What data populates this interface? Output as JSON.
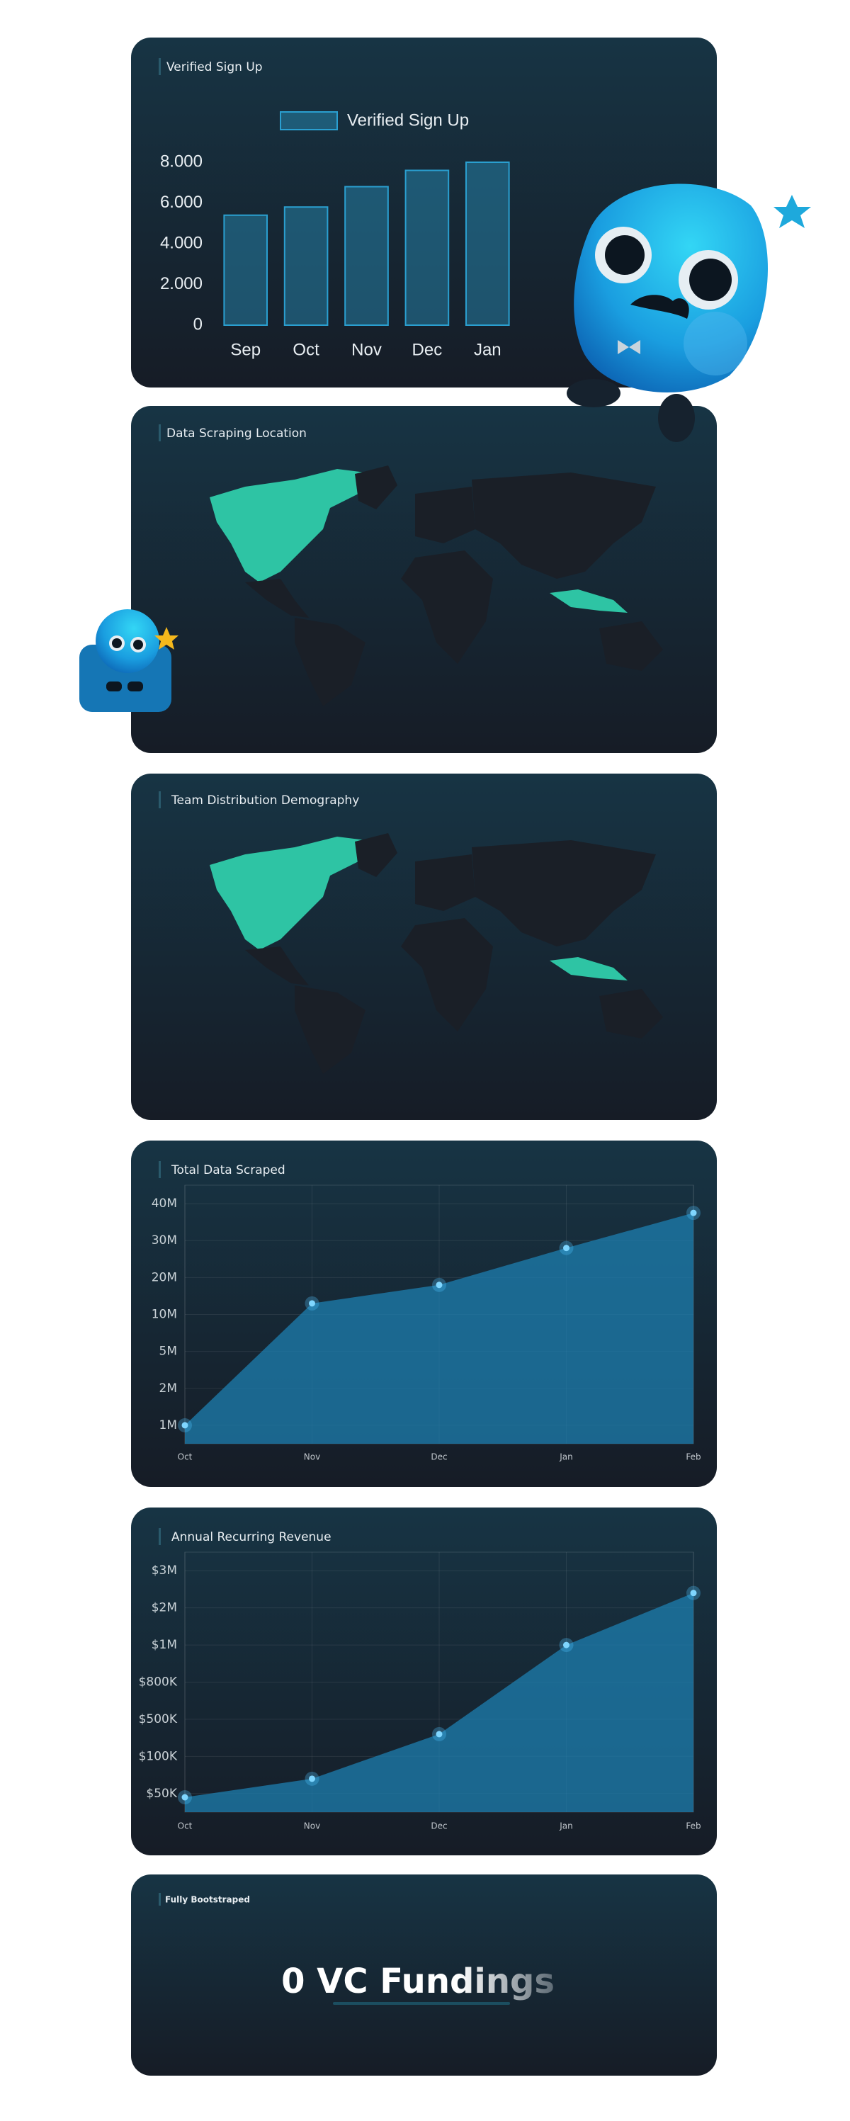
{
  "chart_data": [
    {
      "type": "bar",
      "title": "Verified Sign Up",
      "categories": [
        "Sep",
        "Oct",
        "Nov",
        "Dec",
        "Jan"
      ],
      "series": [
        {
          "name": "Verified Sign Up",
          "color": "#2a9fd0",
          "values": [
            5400,
            5800,
            6800,
            7600,
            8000
          ]
        }
      ],
      "ylim": [
        0,
        8000
      ],
      "yticks": [
        0,
        {
          "value": 2000,
          "label": "2.000"
        },
        {
          "value": 4000,
          "label": "4.000"
        },
        {
          "value": 6000,
          "label": "6.000"
        },
        {
          "value": 8000,
          "label": "8.000"
        }
      ],
      "legend": "top"
    },
    {
      "type": "area",
      "title": "Total Data Scraped",
      "categories": [
        "Oct",
        "Nov",
        "Dec",
        "Jan",
        "Feb"
      ],
      "values": [
        1000000,
        13000000,
        18000000,
        28000000,
        37500000
      ],
      "color": "#1e7fb0",
      "ylim": [
        0,
        45000000
      ],
      "yticks": [
        {
          "value": 1000000,
          "label": "1M"
        },
        {
          "value": 2000000,
          "label": "2M"
        },
        {
          "value": 5000000,
          "label": "5M"
        },
        {
          "value": 10000000,
          "label": "10M"
        },
        {
          "value": 20000000,
          "label": "20M"
        },
        {
          "value": 30000000,
          "label": "30M"
        },
        {
          "value": 40000000,
          "label": "40M"
        }
      ],
      "grid": true
    },
    {
      "type": "area",
      "title": "Annual Recurring Revenue",
      "categories": [
        "Oct",
        "Nov",
        "Dec",
        "Jan",
        "Feb"
      ],
      "values": [
        40000,
        70000,
        340000,
        1000000,
        2400000
      ],
      "color": "#1e7fb0",
      "ylim": [
        0,
        3500000
      ],
      "yticks": [
        {
          "value": 50000,
          "label": "$50K"
        },
        {
          "value": 100000,
          "label": "$100K"
        },
        {
          "value": 500000,
          "label": "$500K"
        },
        {
          "value": 800000,
          "label": "$800K"
        },
        {
          "value": 1000000,
          "label": "$1M"
        },
        {
          "value": 2000000,
          "label": "$2M"
        },
        {
          "value": 3000000,
          "label": "$3M"
        }
      ],
      "grid": true
    }
  ],
  "maps": [
    {
      "title": "Data Scraping Location"
    },
    {
      "title": "Team Distribution Demography"
    }
  ],
  "banner": {
    "label": "Fully Bootstraped",
    "headline": "0 VC Fundings"
  }
}
